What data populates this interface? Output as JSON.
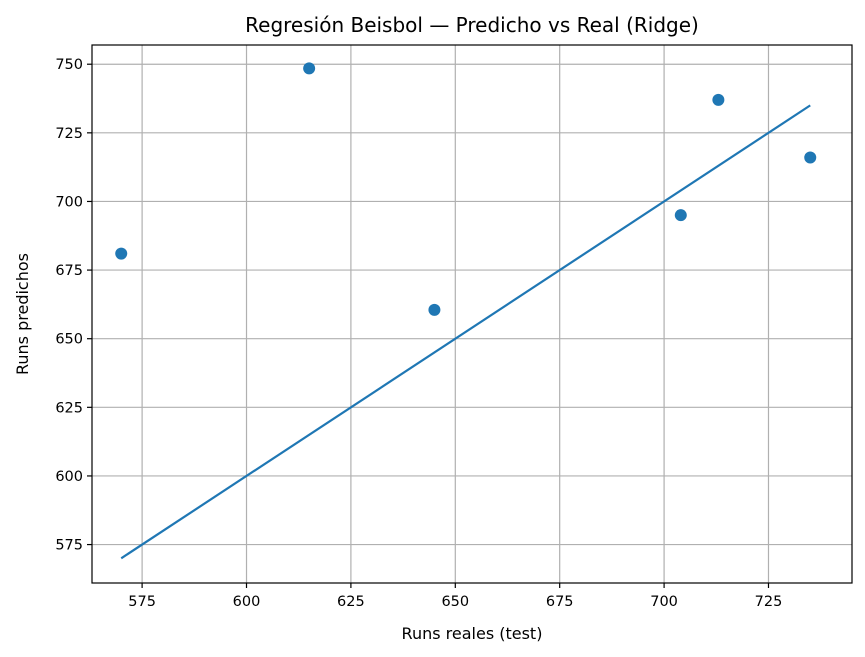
{
  "chart_data": {
    "type": "scatter",
    "title": "Regresión Beisbol — Predicho vs Real (Ridge)",
    "xlabel": "Runs reales (test)",
    "ylabel": "Runs predichos",
    "xlim": [
      563,
      745
    ],
    "ylim": [
      561,
      757
    ],
    "xticks": [
      575,
      600,
      625,
      650,
      675,
      700,
      725
    ],
    "yticks": [
      575,
      600,
      625,
      650,
      675,
      700,
      725,
      750
    ],
    "grid": true,
    "colors": {
      "points": "#1f77b4",
      "line": "#1f77b4"
    },
    "points": [
      {
        "x": 570,
        "y": 681
      },
      {
        "x": 615,
        "y": 748.5
      },
      {
        "x": 645,
        "y": 660.5
      },
      {
        "x": 704,
        "y": 695
      },
      {
        "x": 713,
        "y": 737
      },
      {
        "x": 735,
        "y": 716
      }
    ],
    "reference_line": {
      "x": [
        570,
        735
      ],
      "y": [
        570,
        735
      ]
    }
  }
}
